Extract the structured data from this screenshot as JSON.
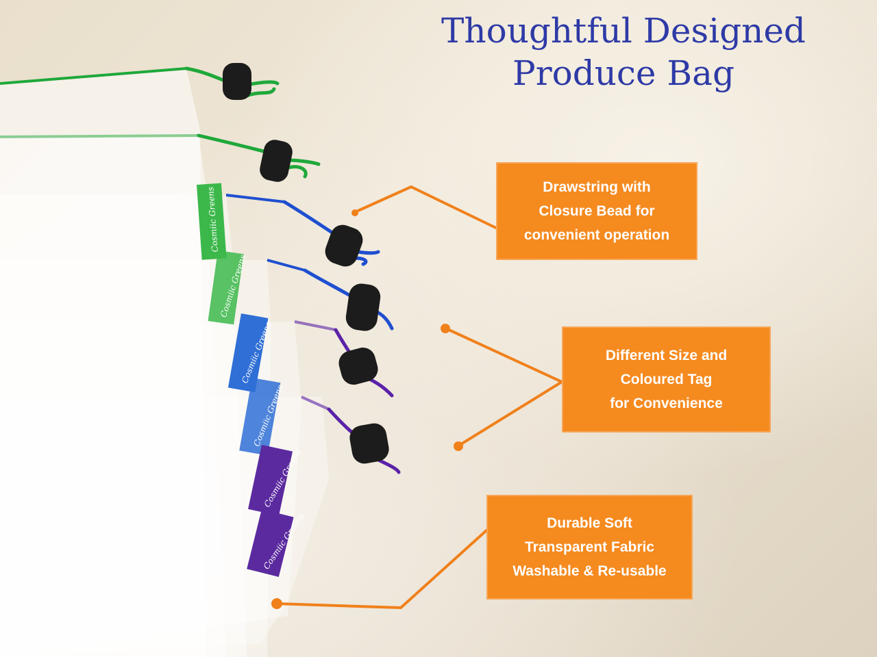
{
  "title": {
    "line1": "Thoughtful Designed",
    "line2": "Produce Bag"
  },
  "callouts": {
    "drawstring": {
      "lines": [
        "Drawstring with",
        "Closure Bead for",
        "convenient operation"
      ]
    },
    "size_tags": {
      "lines": [
        "Different Size and",
        "Coloured Tag",
        "for Convenience"
      ]
    },
    "fabric": {
      "lines": [
        "Durable Soft",
        "Transparent Fabric",
        "Washable & Re-usable"
      ]
    }
  },
  "tags": {
    "brand": "Cosmiic Greens"
  },
  "colors": {
    "title": "#2e3aa6",
    "callout_bg": "#f58a1f",
    "callout_text": "#ffffff",
    "leader_line": "#f0801a",
    "string_green": "#1fa83a",
    "string_blue": "#1f4fd0",
    "string_purple": "#5a22a8",
    "tag_green": "#3cb84a",
    "tag_blue": "#2f6fd6",
    "tag_purple": "#5b2a9e",
    "bead": "#1c1c1c"
  }
}
